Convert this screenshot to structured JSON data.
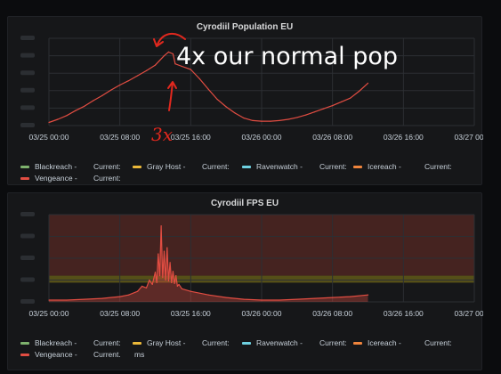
{
  "colors": {
    "series_line": "#e24d42",
    "grid": "#2c2f33",
    "axis_text": "#c7d0d9",
    "threshold_fill": "#6e2d26",
    "threshold_band": "#6b6318",
    "annotation": "#e0281e",
    "legend": {
      "Blackreach": "#7eb26d",
      "Gray Host": "#eab839",
      "Ravenwatch": "#6ed0e0",
      "Icereach": "#ef843c",
      "Vengeance": "#e24d42"
    }
  },
  "chart_data": [
    {
      "type": "line",
      "title": "Cyrodiil Population EU",
      "xlabel": "",
      "ylabel": "",
      "x_ticks": [
        "03/25 00:00",
        "03/25 08:00",
        "03/25 16:00",
        "03/26 00:00",
        "03/26 08:00",
        "03/26 16:00",
        "03/27 00:00"
      ],
      "x_range": [
        "03/25 00:00",
        "03/27 00:00"
      ],
      "y_range": [
        0,
        1.4
      ],
      "grid": true,
      "legend_position": "bottom",
      "legend": [
        {
          "name": "Blackreach",
          "current_label": "Current:"
        },
        {
          "name": "Gray Host",
          "current_label": "Current:"
        },
        {
          "name": "Ravenwatch",
          "current_label": "Current:"
        },
        {
          "name": "Icereach",
          "current_label": "Current:"
        },
        {
          "name": "Vengeance",
          "current_label": "Current:"
        }
      ],
      "series": [
        {
          "legend_key": "Vengeance",
          "x": [
            "03/25 00:00",
            "03/25 01:00",
            "03/25 02:00",
            "03/25 03:00",
            "03/25 04:00",
            "03/25 05:00",
            "03/25 06:00",
            "03/25 07:00",
            "03/25 08:00",
            "03/25 09:00",
            "03/25 10:00",
            "03/25 11:00",
            "03/25 12:00",
            "03/25 13:00",
            "03/25 13:30",
            "03/25 14:00",
            "03/25 14:15",
            "03/25 15:00",
            "03/25 16:00",
            "03/25 17:00",
            "03/25 18:00",
            "03/25 19:00",
            "03/25 20:00",
            "03/25 21:00",
            "03/25 22:00",
            "03/25 23:00",
            "03/26 00:00",
            "03/26 01:00",
            "03/26 02:00",
            "03/26 03:00",
            "03/26 04:00",
            "03/26 05:00",
            "03/26 06:00",
            "03/26 07:00",
            "03/26 08:00",
            "03/26 09:00",
            "03/26 10:00",
            "03/26 11:00",
            "03/26 12:00"
          ],
          "y": [
            0.05,
            0.1,
            0.16,
            0.24,
            0.31,
            0.4,
            0.48,
            0.57,
            0.65,
            0.72,
            0.8,
            0.88,
            0.97,
            1.12,
            1.18,
            1.15,
            0.99,
            0.95,
            0.9,
            0.75,
            0.58,
            0.42,
            0.3,
            0.2,
            0.12,
            0.08,
            0.07,
            0.07,
            0.08,
            0.1,
            0.13,
            0.17,
            0.22,
            0.27,
            0.32,
            0.38,
            0.44,
            0.55,
            0.68
          ]
        }
      ],
      "annotations": [
        {
          "kind": "text",
          "text": "4x our normal pop"
        },
        {
          "kind": "handwritten",
          "text": "3x"
        }
      ]
    },
    {
      "type": "line",
      "title": "Cyrodiil FPS EU",
      "xlabel": "",
      "ylabel": "",
      "x_ticks": [
        "03/25 00:00",
        "03/25 08:00",
        "03/25 16:00",
        "03/26 00:00",
        "03/26 08:00",
        "03/26 16:00",
        "03/27 00:00"
      ],
      "x_range": [
        "03/25 00:00",
        "03/27 00:00"
      ],
      "y_range": [
        0,
        1.0
      ],
      "grid": true,
      "thresholds": [
        {
          "from": 0.3,
          "to": 1.0,
          "kind": "critical"
        },
        {
          "from": 0.22,
          "to": 0.3,
          "kind": "warning"
        }
      ],
      "legend_position": "bottom",
      "legend": [
        {
          "name": "Blackreach",
          "current_label": "Current:"
        },
        {
          "name": "Gray Host",
          "current_label": "Current:"
        },
        {
          "name": "Ravenwatch",
          "current_label": "Current:"
        },
        {
          "name": "Icereach",
          "current_label": "Current:"
        },
        {
          "name": "Vengeance",
          "current_label": "Current."
        }
      ],
      "legend_extra": "ms",
      "series": [
        {
          "legend_key": "Vengeance",
          "x": [
            "03/25 00:00",
            "03/25 02:00",
            "03/25 04:00",
            "03/25 06:00",
            "03/25 08:00",
            "03/25 09:00",
            "03/25 10:00",
            "03/25 10:30",
            "03/25 11:00",
            "03/25 11:20",
            "03/25 11:40",
            "03/25 12:00",
            "03/25 12:10",
            "03/25 12:20",
            "03/25 12:30",
            "03/25 12:40",
            "03/25 12:50",
            "03/25 13:00",
            "03/25 13:10",
            "03/25 13:20",
            "03/25 13:30",
            "03/25 13:40",
            "03/25 13:50",
            "03/25 14:00",
            "03/25 14:10",
            "03/25 14:20",
            "03/25 14:30",
            "03/25 14:40",
            "03/25 15:00",
            "03/25 16:00",
            "03/25 18:00",
            "03/25 20:00",
            "03/25 22:00",
            "03/26 00:00",
            "03/26 02:00",
            "03/26 04:00",
            "03/26 06:00",
            "03/26 08:00",
            "03/26 10:00",
            "03/26 12:00"
          ],
          "y": [
            0.02,
            0.02,
            0.03,
            0.04,
            0.06,
            0.08,
            0.12,
            0.18,
            0.16,
            0.25,
            0.2,
            0.34,
            0.22,
            0.55,
            0.3,
            0.87,
            0.28,
            0.58,
            0.25,
            0.62,
            0.24,
            0.45,
            0.22,
            0.35,
            0.21,
            0.3,
            0.18,
            0.2,
            0.15,
            0.12,
            0.08,
            0.05,
            0.03,
            0.02,
            0.02,
            0.03,
            0.04,
            0.05,
            0.06,
            0.08
          ]
        }
      ]
    }
  ]
}
